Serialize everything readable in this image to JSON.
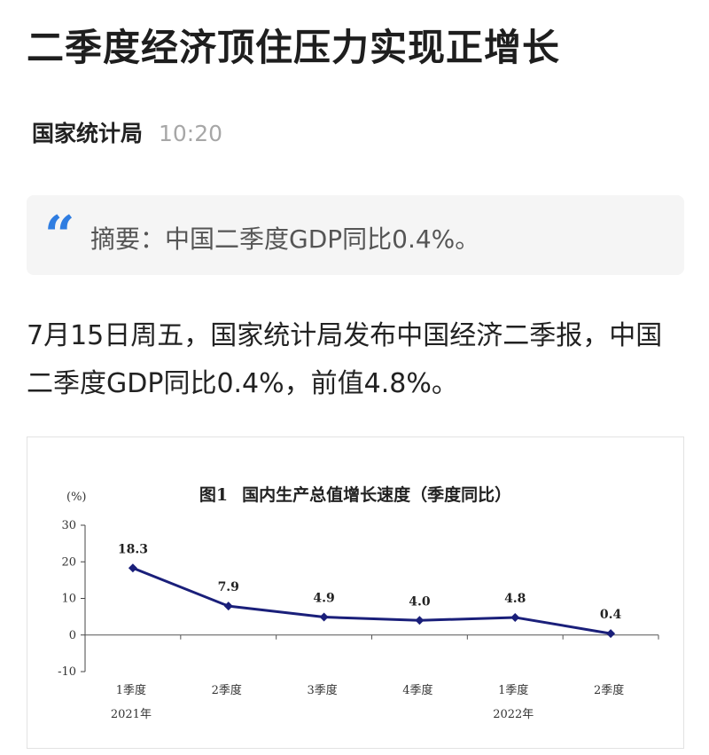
{
  "article": {
    "title": "二季度经济顶住压力实现正增长",
    "source": "国家统计局",
    "time": "10:20",
    "summary": "摘要：中国二季度GDP同比0.4%。",
    "body": "7月15日周五，国家统计局发布中国经济二季报，中国二季度GDP同比0.4%，前值4.8%。"
  },
  "chart_data": {
    "type": "line",
    "figure_label": "图1",
    "title": "国内生产总值增长速度（季度同比）",
    "ylabel": "(%)",
    "categories": [
      "1季度",
      "2季度",
      "3季度",
      "4季度",
      "1季度",
      "2季度"
    ],
    "year_labels": [
      {
        "category_index": 0,
        "label": "2021年"
      },
      {
        "category_index": 4,
        "label": "2022年"
      }
    ],
    "values": [
      18.3,
      7.9,
      4.9,
      4.0,
      4.8,
      0.4
    ],
    "value_labels": [
      "18.3",
      "7.9",
      "4.9",
      "4.0",
      "4.8",
      "0.4"
    ],
    "ylim": [
      -10,
      30
    ],
    "yticks": [
      30,
      20,
      10,
      0,
      -10
    ],
    "grid": false,
    "legend": "none",
    "color": "#1a1f7a"
  }
}
